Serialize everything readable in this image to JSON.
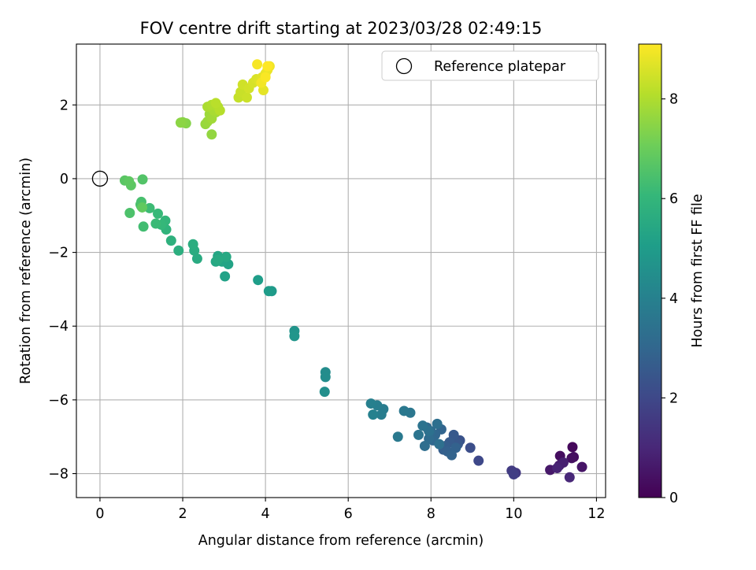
{
  "chart_data": {
    "type": "scatter",
    "title": "FOV centre drift starting at 2023/03/28 02:49:15",
    "xlabel": "Angular distance from reference (arcmin)",
    "ylabel": "Rotation from reference (arcmin)",
    "xlim": [
      -0.57,
      12.22
    ],
    "ylim": [
      -8.65,
      3.65
    ],
    "xticks": [
      0,
      2,
      4,
      6,
      8,
      10,
      12
    ],
    "xtick_labels": [
      "0",
      "2",
      "4",
      "6",
      "8",
      "10",
      "12"
    ],
    "yticks": [
      -8,
      -6,
      -4,
      -2,
      0,
      2
    ],
    "ytick_labels": [
      "−8",
      "−6",
      "−4",
      "−2",
      "0",
      "2"
    ],
    "grid": true,
    "legend": {
      "position": "top-right",
      "entries": [
        "Reference platepar"
      ]
    },
    "reference_point": {
      "x": 0,
      "y": 0,
      "marker": "open-circle",
      "color": "#000000"
    },
    "colorbar": {
      "label": "Hours from first FF file",
      "range": [
        0,
        9.1
      ],
      "ticks": [
        0,
        2,
        4,
        6,
        8
      ],
      "tick_labels": [
        "0",
        "2",
        "4",
        "6",
        "8"
      ],
      "colormap": "viridis",
      "colors": [
        "#440154",
        "#482878",
        "#3e4989",
        "#31688e",
        "#26828e",
        "#1f9e89",
        "#35b779",
        "#6ece58",
        "#b5de2b",
        "#fde725"
      ]
    },
    "series": [
      {
        "x": [
          11.42,
          11.12,
          11.45,
          11.4,
          11.65,
          10.88,
          11.1,
          11.2,
          11.05,
          11.35,
          10.05,
          9.95,
          10.0,
          9.15,
          8.95,
          8.7,
          8.55,
          8.65,
          8.55,
          8.45,
          8.35,
          8.3,
          8.4,
          8.6,
          8.5,
          8.25,
          8.1,
          8.05,
          8.0,
          7.9,
          7.95,
          7.85,
          8.15,
          8.2,
          7.95,
          7.8,
          7.7,
          7.5,
          7.35,
          7.2,
          6.85,
          6.8,
          6.7,
          6.55,
          6.6,
          5.45,
          5.45,
          5.43,
          4.7,
          4.7,
          4.15,
          4.08,
          3.82,
          3.02,
          3.1,
          2.95,
          2.85,
          2.8,
          3.05,
          2.85,
          2.35,
          2.28,
          2.25,
          1.9,
          1.72,
          1.6,
          1.58,
          1.48,
          1.4,
          1.35,
          1.2,
          1.05,
          1.0,
          1.0,
          0.98,
          0.72,
          1.03,
          0.6,
          0.75,
          0.7,
          1.02,
          2.08,
          2.0,
          1.95,
          2.7,
          2.55,
          2.6,
          2.65,
          2.7,
          2.8,
          2.75,
          2.6,
          2.7,
          2.85,
          2.9,
          2.8,
          3.35,
          3.4,
          3.55,
          3.45,
          3.6,
          3.7,
          3.78,
          3.85,
          3.92,
          3.95,
          4.0,
          4.05,
          4.1,
          3.9,
          3.8,
          4.0,
          4.05
        ],
        "y": [
          -7.28,
          -7.52,
          -7.55,
          -7.58,
          -7.82,
          -7.9,
          -7.78,
          -7.7,
          -7.85,
          -8.1,
          -7.98,
          -7.92,
          -8.02,
          -7.65,
          -7.3,
          -7.1,
          -7.05,
          -7.2,
          -6.95,
          -7.15,
          -7.25,
          -7.35,
          -7.4,
          -7.3,
          -7.5,
          -6.8,
          -6.95,
          -7.1,
          -6.85,
          -6.75,
          -7.05,
          -7.25,
          -6.65,
          -7.2,
          -6.85,
          -6.7,
          -6.95,
          -6.35,
          -6.3,
          -7.0,
          -6.25,
          -6.4,
          -6.15,
          -6.1,
          -6.4,
          -5.25,
          -5.38,
          -5.78,
          -4.13,
          -4.27,
          -3.05,
          -3.05,
          -2.75,
          -2.65,
          -2.32,
          -2.25,
          -2.1,
          -2.25,
          -2.12,
          -2.2,
          -2.17,
          -1.95,
          -1.78,
          -1.95,
          -1.68,
          -1.38,
          -1.14,
          -1.25,
          -0.95,
          -1.22,
          -0.8,
          -1.3,
          -0.75,
          -0.63,
          -0.7,
          -0.93,
          -0.02,
          -0.05,
          -0.18,
          -0.07,
          -0.78,
          1.5,
          1.53,
          1.52,
          1.2,
          1.48,
          1.55,
          1.75,
          1.63,
          1.8,
          1.85,
          1.95,
          2.0,
          1.95,
          1.85,
          2.05,
          2.2,
          2.35,
          2.2,
          2.55,
          2.45,
          2.6,
          2.7,
          2.65,
          2.75,
          2.4,
          2.85,
          2.95,
          3.05,
          2.6,
          3.1,
          2.75,
          3.05
        ],
        "hours": [
          0.2,
          0.3,
          0.3,
          0.35,
          0.5,
          0.6,
          0.7,
          0.8,
          0.9,
          1.0,
          1.5,
          1.6,
          1.7,
          2.0,
          2.2,
          2.3,
          2.4,
          2.5,
          2.55,
          2.6,
          2.7,
          2.75,
          2.8,
          2.85,
          2.9,
          2.95,
          3.0,
          3.05,
          3.1,
          3.15,
          3.2,
          3.25,
          3.3,
          3.35,
          3.4,
          3.45,
          3.5,
          3.6,
          3.65,
          3.7,
          3.8,
          3.85,
          3.9,
          3.95,
          4.0,
          4.4,
          4.45,
          4.5,
          4.7,
          4.75,
          4.9,
          5.0,
          5.05,
          5.2,
          5.25,
          5.3,
          5.35,
          5.4,
          5.45,
          5.5,
          5.55,
          5.6,
          5.65,
          5.7,
          5.8,
          5.9,
          6.0,
          6.05,
          6.1,
          6.15,
          6.2,
          6.3,
          6.35,
          6.4,
          6.45,
          6.5,
          6.6,
          6.7,
          6.75,
          6.8,
          6.85,
          7.4,
          7.45,
          7.5,
          7.6,
          7.65,
          7.7,
          7.75,
          7.8,
          7.85,
          7.9,
          7.95,
          8.0,
          8.05,
          8.1,
          8.15,
          8.3,
          8.35,
          8.4,
          8.45,
          8.5,
          8.55,
          8.6,
          8.65,
          8.7,
          8.75,
          8.8,
          8.85,
          8.9,
          8.95,
          9.0,
          9.05,
          9.1
        ]
      }
    ]
  }
}
